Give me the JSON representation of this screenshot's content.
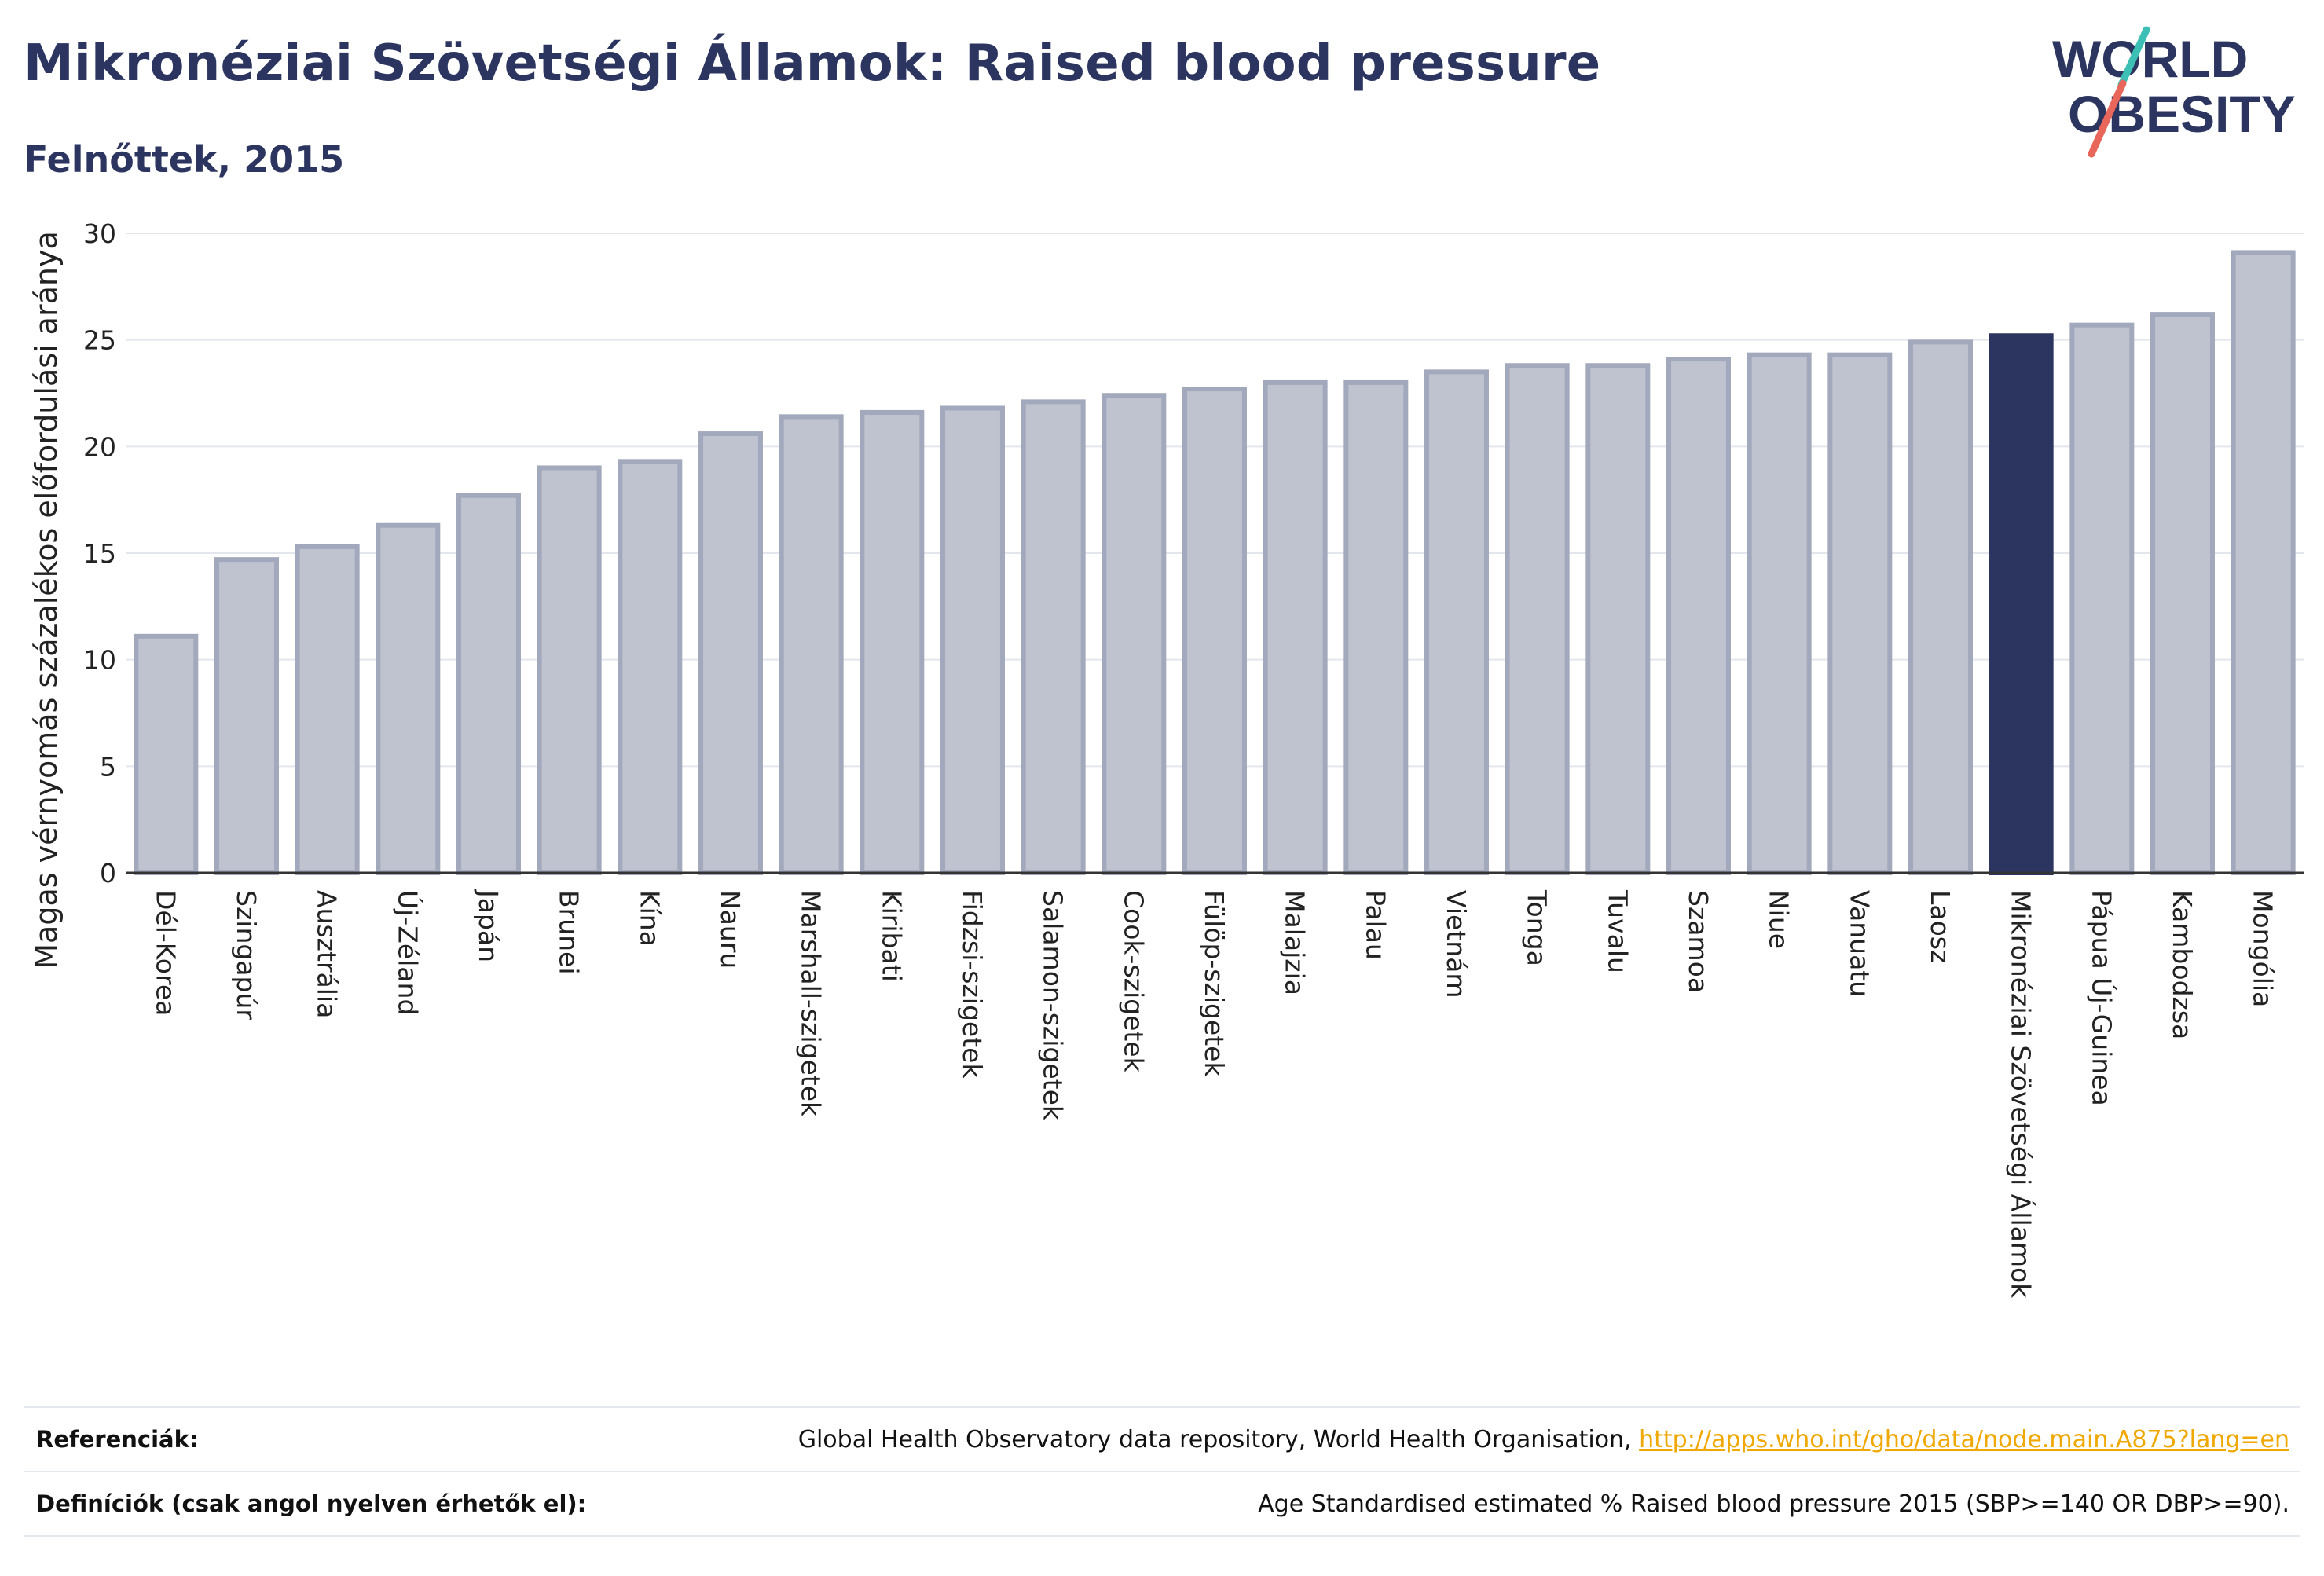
{
  "header": {
    "title": "Mikronéziai Szövetségi Államok: Raised blood pressure",
    "subtitle": "Felnőttek, 2015"
  },
  "logo": {
    "line1": "WORLD",
    "line2": "OBESITY",
    "colors": {
      "text": "#2b3560",
      "slash_teal": "#3cbfb4",
      "slash_red": "#e8675a"
    }
  },
  "chart_data": {
    "type": "bar",
    "ylabel": "Magas vérnyomás százalékos előfordulási aránya",
    "xlabel": "",
    "ylim": [
      0,
      30
    ],
    "yticks": [
      0,
      5,
      10,
      15,
      20,
      25,
      30
    ],
    "grid": true,
    "highlight": "Mikronéziai Szövetségi Államok",
    "colors": {
      "bar": "#bfc3d0",
      "bar_edge": "#a3a9bc",
      "highlight": "#2b3560",
      "grid": "#e4e6ee",
      "axis": "#333333"
    },
    "categories": [
      "Dél-Korea",
      "Szingapúr",
      "Ausztrália",
      "Új-Zéland",
      "Japán",
      "Brunei",
      "Kína",
      "Nauru",
      "Marshall-szigetek",
      "Kiribati",
      "Fidzsi-szigetek",
      "Salamon-szigetek",
      "Cook-szigetek",
      "Fülöp-szigetek",
      "Malajzia",
      "Palau",
      "Vietnám",
      "Tonga",
      "Tuvalu",
      "Szamoa",
      "Niue",
      "Vanuatu",
      "Laosz",
      "Mikronéziai Szövetségi Államok",
      "Pápua Új-Guinea",
      "Kambodzsa",
      "Mongólia"
    ],
    "values": [
      11.1,
      14.7,
      15.3,
      16.3,
      17.7,
      19.0,
      19.3,
      20.6,
      21.4,
      21.6,
      21.8,
      22.1,
      22.4,
      22.7,
      23.0,
      23.0,
      23.5,
      23.8,
      23.8,
      24.1,
      24.3,
      24.3,
      24.9,
      25.2,
      25.7,
      26.2,
      29.1
    ]
  },
  "footer": {
    "references_label": "Referenciák:",
    "references_text": "Global Health Observatory data repository, World Health Organisation, ",
    "references_link": "http://apps.who.int/gho/data/node.main.A875?lang=en",
    "definitions_label": "Definíciók (csak angol nyelven érhetők el):",
    "definitions_text": "Age Standardised estimated % Raised blood pressure 2015 (SBP>=140 OR DBP>=90)."
  }
}
